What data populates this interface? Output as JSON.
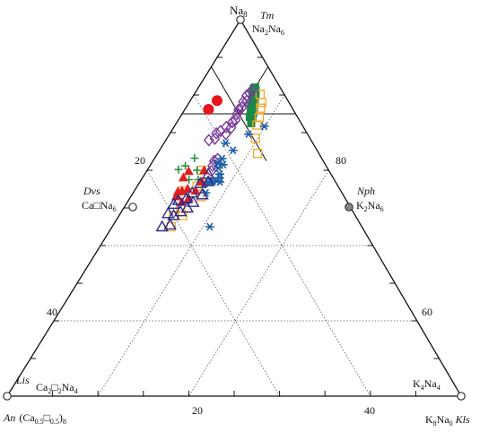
{
  "chart_data": {
    "type": "scatter",
    "subtype": "ternary",
    "vertices": {
      "top": {
        "main": "Na",
        "sub": "8",
        "mineral": "Tm"
      },
      "left": {
        "main": "(Ca",
        "sub": "0.5",
        "mid": "□",
        "sub2": "0.5",
        "close": ")",
        "sub3": "8",
        "mineral": "An"
      },
      "right": {
        "main": "K",
        "sub": "8",
        "main2": "Na",
        "sub2": "0",
        "mineral": "Kls"
      }
    },
    "end_members": {
      "tm": {
        "label": "Na2Na6",
        "name": "Tm"
      },
      "dvs": {
        "label": "Ca□Na6",
        "name": "Dvs"
      },
      "nph": {
        "label": "K2Na6",
        "name": "Nph"
      },
      "lis": {
        "label": "Ca2□2Na4",
        "name": "Lis"
      },
      "k4na4": {
        "label": "K4Na4"
      }
    },
    "tick_labels": {
      "left_20": "20",
      "left_40": "40",
      "right_80": "80",
      "right_60": "60",
      "bottom_20": "20",
      "bottom_40": "40"
    },
    "axis_ranges": {
      "an_percent": [
        0,
        100
      ],
      "kls_percent": [
        0,
        100
      ],
      "na_percent": [
        0,
        100
      ]
    },
    "grid": "dotted lines at 20% and 40%",
    "colors": {
      "frame": "#111111",
      "grid": "#555555",
      "red_dot": "#e8141c",
      "green_square": "#1a8a4a",
      "yellow_square": "#f5a623",
      "purple_diamond": "#7b3a9a",
      "blue_star": "#1f5fa8",
      "green_cross": "#1f8f3a",
      "red_triangle": "#e02020",
      "navy_triangle": "#2b2b8a"
    },
    "series": [
      {
        "marker": "red-dot",
        "points": [
          [
            15.6,
            5.9
          ],
          [
            18.6,
            5.2
          ]
        ]
      },
      {
        "marker": "green-square",
        "points": [
          [
            5.5,
            12.5
          ],
          [
            5.8,
            13.0
          ],
          [
            6.0,
            12.3
          ],
          [
            6.3,
            13.5
          ],
          [
            6.6,
            12.8
          ],
          [
            7.0,
            14.0
          ],
          [
            7.3,
            13.2
          ],
          [
            7.6,
            14.5
          ],
          [
            8.0,
            13.8
          ],
          [
            8.4,
            15.0
          ],
          [
            8.8,
            14.2
          ],
          [
            9.2,
            15.5
          ],
          [
            9.6,
            14.8
          ],
          [
            10.0,
            16.0
          ],
          [
            10.5,
            15.3
          ],
          [
            11.0,
            16.5
          ]
        ]
      },
      {
        "marker": "yellow-square",
        "points": [
          [
            5.3,
            14.5
          ],
          [
            6.0,
            16.0
          ],
          [
            7.0,
            16.5
          ],
          [
            8.5,
            17.5
          ],
          [
            10.0,
            18.0
          ],
          [
            12.0,
            19.5
          ],
          [
            13.5,
            22.0
          ],
          [
            28.0,
            12.0
          ],
          [
            29.5,
            14.0
          ],
          [
            31.0,
            13.2
          ],
          [
            31.5,
            15.5
          ],
          [
            35.0,
            10.5
          ],
          [
            37.5,
            12.5
          ],
          [
            38.0,
            14.0
          ],
          [
            40.0,
            12.0
          ],
          [
            42.0,
            13.0
          ]
        ]
      },
      {
        "marker": "purple-diamond",
        "points": [
          [
            6.5,
            12.3
          ],
          [
            7.5,
            12.0
          ],
          [
            8.5,
            11.7
          ],
          [
            9.0,
            12.5
          ],
          [
            10.0,
            11.8
          ],
          [
            11.0,
            12.3
          ],
          [
            12.0,
            11.9
          ],
          [
            13.0,
            12.1
          ],
          [
            14.0,
            12.6
          ],
          [
            15.0,
            12.2
          ],
          [
            16.0,
            12.7
          ],
          [
            17.0,
            11.5
          ],
          [
            18.0,
            12.4
          ],
          [
            18.8,
            10.8
          ],
          [
            20.0,
            10.2
          ],
          [
            21.0,
            10.6
          ],
          [
            22.5,
            9.5
          ],
          [
            23.0,
            14.0
          ],
          [
            24.0,
            13.5
          ],
          [
            25.0,
            13.8
          ],
          [
            26.0,
            14.2
          ]
        ]
      },
      {
        "marker": "blue-star",
        "points": [
          [
            8.5,
            19.8
          ],
          [
            13.0,
            17.4
          ],
          [
            18.5,
            16.2
          ],
          [
            19.2,
            13.6
          ],
          [
            22.0,
            14.9
          ],
          [
            22.5,
            16.0
          ],
          [
            23.5,
            14.6
          ],
          [
            24.0,
            15.4
          ],
          [
            24.5,
            16.5
          ],
          [
            25.0,
            17.0
          ],
          [
            25.5,
            17.6
          ],
          [
            26.0,
            16.8
          ],
          [
            27.0,
            16.0
          ],
          [
            27.5,
            15.5
          ],
          [
            28.0,
            15.2
          ],
          [
            29.0,
            14.5
          ],
          [
            30.0,
            16.0
          ],
          [
            33.5,
            21.5
          ]
        ]
      },
      {
        "marker": "green-cross",
        "points": [
          [
            28.0,
            8.8
          ],
          [
            29.0,
            11.0
          ],
          [
            30.0,
            12.5
          ],
          [
            31.0,
            7.8
          ],
          [
            32.0,
            10.5
          ],
          [
            33.0,
            6.8
          ]
        ]
      },
      {
        "marker": "red-triangle",
        "points": [
          [
            27.5,
            12.6
          ],
          [
            29.5,
            13.6
          ],
          [
            31.0,
            9.3
          ],
          [
            32.0,
            13.5
          ],
          [
            33.0,
            9.0
          ],
          [
            33.5,
            11.5
          ],
          [
            34.5,
            13.0
          ],
          [
            35.0,
            10.5
          ],
          [
            36.0,
            9.7
          ],
          [
            36.5,
            12.0
          ],
          [
            37.0,
            10.0
          ]
        ]
      },
      {
        "marker": "navy-triangle",
        "points": [
          [
            27.0,
            14.0
          ],
          [
            28.0,
            15.0
          ],
          [
            30.0,
            13.5
          ],
          [
            31.0,
            15.5
          ],
          [
            33.0,
            13.0
          ],
          [
            34.0,
            14.5
          ],
          [
            35.0,
            12.5
          ],
          [
            36.0,
            14.0
          ],
          [
            37.0,
            11.0
          ],
          [
            38.0,
            13.0
          ],
          [
            38.5,
            10.5
          ],
          [
            40.0,
            12.0
          ],
          [
            41.0,
            10.5
          ],
          [
            42.0,
            12.5
          ],
          [
            44.0,
            11.0
          ]
        ]
      }
    ]
  }
}
